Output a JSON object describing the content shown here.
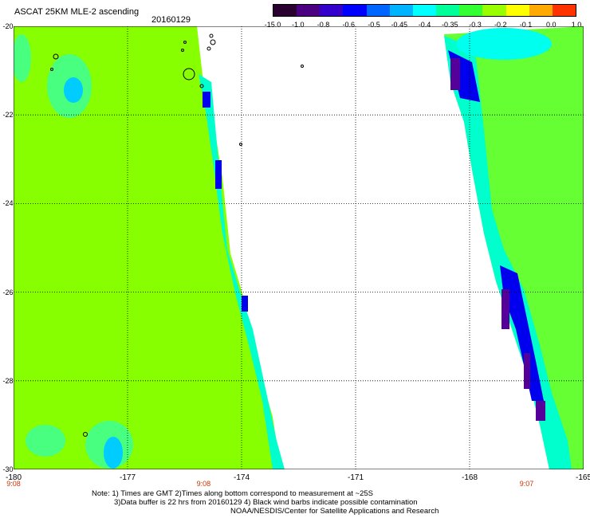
{
  "title": "ASCAT 25KM MLE-2 ascending",
  "date": "20160129",
  "colorbar": {
    "ticks": [
      "-15.0",
      "-1.0",
      "-0.8",
      "-0.6",
      "-0.5",
      "-0.45",
      "-0.4",
      "-0.35",
      "-0.3",
      "-0.2",
      "-0.1",
      "0.0",
      "1.0"
    ],
    "colors": [
      "#2a0030",
      "#4b0082",
      "#3300cc",
      "#0000ff",
      "#0066ff",
      "#00b4ff",
      "#00ffff",
      "#00ff99",
      "#33ff33",
      "#99ff00",
      "#ffff00",
      "#ffaa00",
      "#ff3300"
    ]
  },
  "axes": {
    "lat_labels": [
      "-20",
      "-22",
      "-24",
      "-26",
      "-28",
      "-30"
    ],
    "lon_labels": [
      "-180",
      "-177",
      "-174",
      "-171",
      "-168",
      "-165"
    ],
    "lat_range": [
      -30,
      -20
    ],
    "lon_range": [
      -180,
      -165
    ]
  },
  "times": [
    {
      "label": "9:08",
      "lon": -180
    },
    {
      "label": "9:08",
      "lon": -175
    },
    {
      "label": "9:07",
      "lon": -166.5
    }
  ],
  "notes": {
    "line1": "Note: 1) Times are GMT 2)Times along bottom correspond to measurement at ~25S",
    "line2": "3)Data buffer is 22 hrs from 20160129 4) Black wind barbs indicate possible contamination",
    "line3": "NOAA/NESDIS/Center for Satellite Applications and Research"
  },
  "swaths": {
    "left_color": "#88ff00",
    "right_color": "#66ff33",
    "edge_color": "#00ffcc",
    "deep_color": "#0000ee",
    "purple_color": "#550099"
  }
}
